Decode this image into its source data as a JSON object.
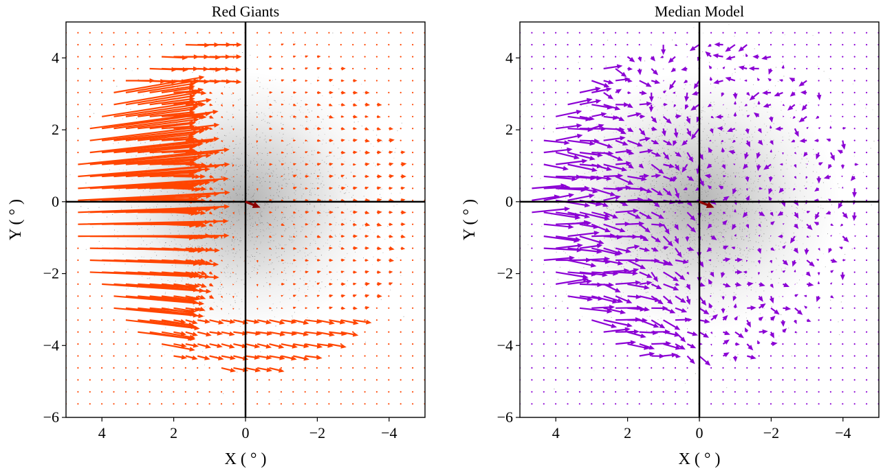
{
  "figure": {
    "background": "#ffffff"
  },
  "chart_data": [
    {
      "type": "quiver",
      "title": "Red Giants",
      "xlabel": "X ( ° )",
      "ylabel": "Y ( ° )",
      "xlim": [
        5,
        -5
      ],
      "ylim": [
        -6,
        5
      ],
      "xticks": [
        4,
        2,
        0,
        -2,
        -4
      ],
      "xtick_labels": [
        "4",
        "2",
        "0",
        "−2",
        "−4"
      ],
      "yticks": [
        4,
        2,
        0,
        -2,
        -4,
        -6
      ],
      "ytick_labels": [
        "4",
        "2",
        "0",
        "−2",
        "−4",
        "−6"
      ],
      "grid": false,
      "reference_lines": {
        "x": 0,
        "y": 0,
        "color": "#000000"
      },
      "vector_color": "#ff4500",
      "mean_motion_arrow": {
        "x": 0,
        "y": 0,
        "u": 0.8,
        "v": -0.32,
        "color": "#8b0000"
      },
      "background_density": {
        "description_free": true,
        "center": [
          0.1,
          0.0
        ],
        "color": "#000000"
      }
    },
    {
      "type": "quiver",
      "title": "Median Model",
      "xlabel": "X ( ° )",
      "ylabel": "Y ( ° )",
      "xlim": [
        5,
        -5
      ],
      "ylim": [
        -6,
        5
      ],
      "xticks": [
        4,
        2,
        0,
        -2,
        -4
      ],
      "xtick_labels": [
        "4",
        "2",
        "0",
        "−2",
        "−4"
      ],
      "yticks": [
        4,
        2,
        0,
        -2,
        -4,
        -6
      ],
      "ytick_labels": [
        "4",
        "2",
        "0",
        "−2",
        "−4",
        "−6"
      ],
      "grid": false,
      "reference_lines": {
        "x": 0,
        "y": 0,
        "color": "#000000"
      },
      "vector_color": "#8b00d4",
      "mean_motion_arrow": {
        "x": 0,
        "y": 0,
        "u": 0.8,
        "v": -0.32,
        "color": "#8b0000"
      },
      "background_density": {
        "description_free": true,
        "center": [
          0.1,
          0.0
        ],
        "color": "#000000"
      }
    }
  ]
}
